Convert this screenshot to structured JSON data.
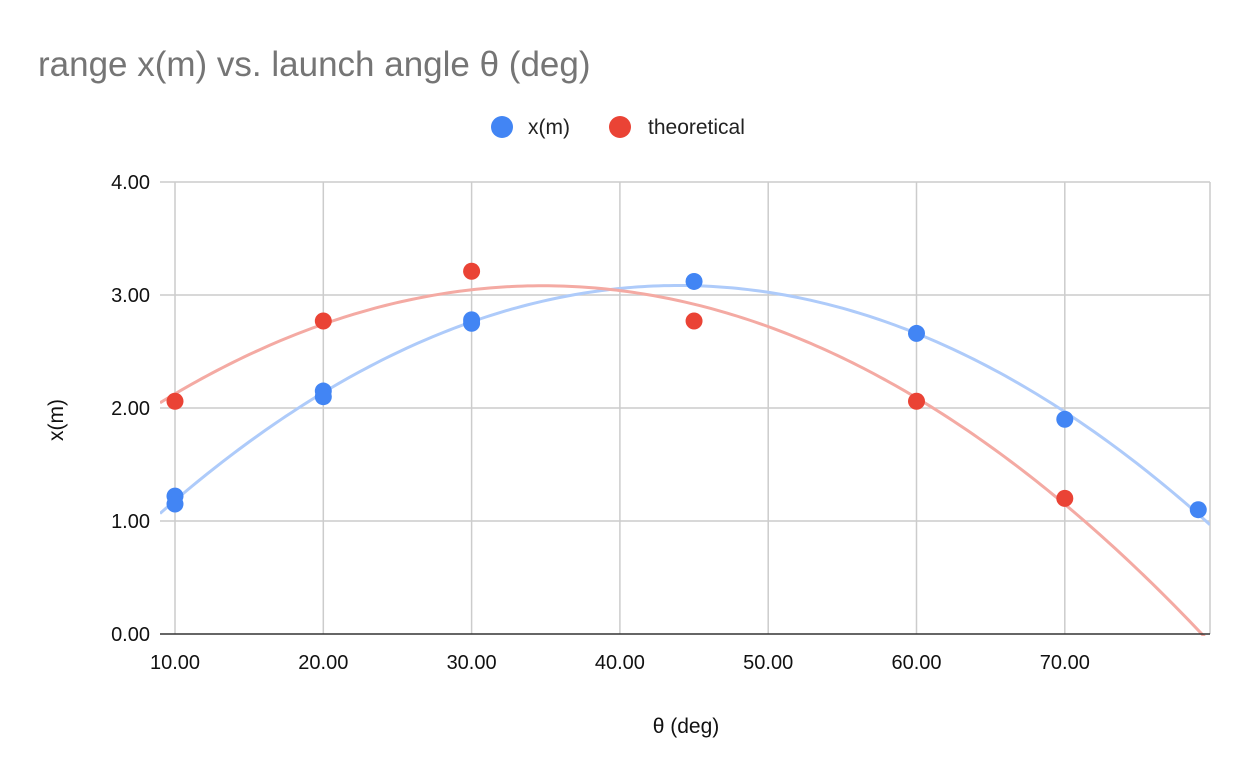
{
  "chart_data": {
    "type": "scatter",
    "title": "range x(m) vs. launch angle θ (deg)",
    "xlabel": "θ (deg)",
    "ylabel": "x(m)",
    "xlim": [
      10,
      80
    ],
    "ylim": [
      0,
      4
    ],
    "x_ticks": [
      10,
      20,
      30,
      40,
      50,
      60,
      70
    ],
    "x_tick_labels": [
      "10.00",
      "20.00",
      "30.00",
      "40.00",
      "50.00",
      "60.00",
      "70.00"
    ],
    "y_ticks": [
      0,
      1,
      2,
      3,
      4
    ],
    "y_tick_labels": [
      "0.00",
      "1.00",
      "2.00",
      "3.00",
      "4.00"
    ],
    "grid": true,
    "legend_position": "top",
    "series": [
      {
        "name": "x(m)",
        "color": "#4285f4",
        "trend_color": "#aecbfa",
        "trendline": "polynomial",
        "points": [
          {
            "x": 10,
            "y": 1.22
          },
          {
            "x": 10,
            "y": 1.15
          },
          {
            "x": 20,
            "y": 2.15
          },
          {
            "x": 20,
            "y": 2.1
          },
          {
            "x": 30,
            "y": 2.78
          },
          {
            "x": 30,
            "y": 2.75
          },
          {
            "x": 45,
            "y": 3.12
          },
          {
            "x": 60,
            "y": 2.66
          },
          {
            "x": 70,
            "y": 1.9
          },
          {
            "x": 79,
            "y": 1.1
          }
        ]
      },
      {
        "name": "theoretical",
        "color": "#ea4335",
        "trend_color": "#f4aaa3",
        "trendline": "polynomial",
        "points": [
          {
            "x": 10,
            "y": 2.06
          },
          {
            "x": 20,
            "y": 2.77
          },
          {
            "x": 30,
            "y": 3.21
          },
          {
            "x": 45,
            "y": 2.77
          },
          {
            "x": 60,
            "y": 2.06
          },
          {
            "x": 70,
            "y": 1.2
          }
        ]
      }
    ]
  }
}
